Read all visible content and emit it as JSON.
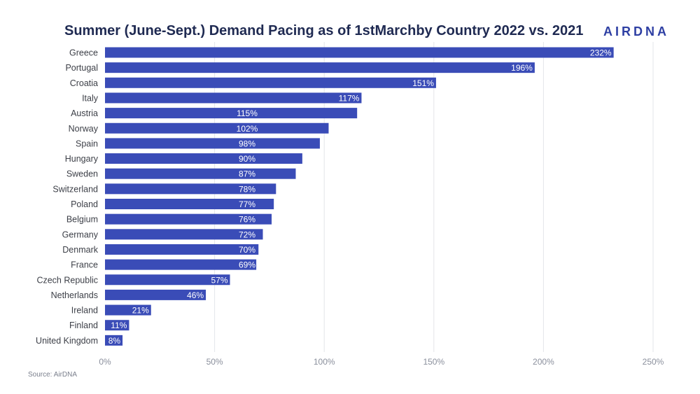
{
  "header": {
    "title": "Summer (June-Sept.) Demand Pacing as of 1stMarchby Country 2022 vs. 2021",
    "logo_text": "AIRDNA"
  },
  "footer": {
    "source": "Source: AirDNA"
  },
  "colors": {
    "bar": "#3a4cb7",
    "grid": "#e3e5ea",
    "label": "#3c3f47",
    "value_label": "#ffffff"
  },
  "chart_data": {
    "type": "bar",
    "orientation": "horizontal",
    "title": "Summer (June-Sept.) Demand Pacing as of 1stMarchby Country 2022 vs. 2021",
    "xlabel": "",
    "ylabel": "",
    "xlim": [
      0,
      250
    ],
    "x_ticks": [
      0,
      50,
      100,
      150,
      200,
      250
    ],
    "x_tick_labels": [
      "0%",
      "50%",
      "100%",
      "150%",
      "200%",
      "250%"
    ],
    "grid": true,
    "categories": [
      "Greece",
      "Portugal",
      "Croatia",
      "Italy",
      "Austria",
      "Norway",
      "Spain",
      "Hungary",
      "Sweden",
      "Switzerland",
      "Poland",
      "Belgium",
      "Germany",
      "Denmark",
      "France",
      "Czech Republic",
      "Netherlands",
      "Ireland",
      "Finland",
      "United Kingdom"
    ],
    "values": [
      232,
      196,
      151,
      117,
      115,
      102,
      98,
      90,
      87,
      78,
      77,
      76,
      72,
      70,
      69,
      57,
      46,
      21,
      11,
      8
    ],
    "value_labels": [
      "232%",
      "196%",
      "151%",
      "117%",
      "115%",
      "102%",
      "98%",
      "90%",
      "87%",
      "78%",
      "77%",
      "76%",
      "72%",
      "70%",
      "69%",
      "57%",
      "46%",
      "21%",
      "11%",
      "8%"
    ]
  }
}
